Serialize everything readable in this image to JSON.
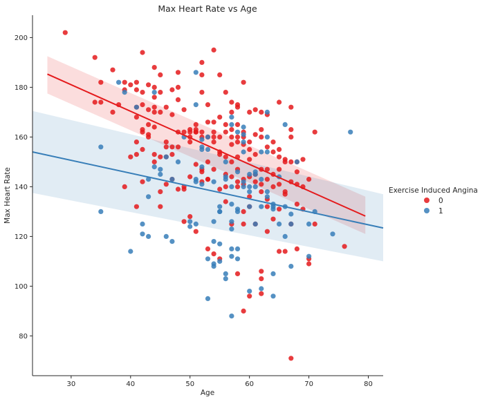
{
  "chart_data": {
    "type": "scatter",
    "title": "Max Heart Rate vs Age",
    "xlabel": "Age",
    "ylabel": "Max Heart Rate",
    "xlim": [
      23.5,
      82.5
    ],
    "ylim": [
      64,
      209
    ],
    "x_ticks": [
      30,
      40,
      50,
      60,
      70,
      80
    ],
    "y_ticks": [
      80,
      100,
      120,
      140,
      160,
      180,
      200
    ],
    "grid": false,
    "legend_title": "Exercise Induced Angina",
    "legend_position": "right",
    "series": [
      {
        "name": "0",
        "color": "#e41a1c",
        "points": [
          [
            29,
            202
          ],
          [
            34,
            192
          ],
          [
            35,
            182
          ],
          [
            37,
            187
          ],
          [
            42,
            194
          ],
          [
            44,
            188
          ],
          [
            45,
            185
          ],
          [
            48,
            186
          ],
          [
            52,
            190
          ],
          [
            54,
            195
          ],
          [
            35,
            174
          ],
          [
            34,
            174
          ],
          [
            38,
            173
          ],
          [
            39,
            182
          ],
          [
            40,
            181
          ],
          [
            41,
            182
          ],
          [
            41,
            179
          ],
          [
            42,
            178
          ],
          [
            43,
            181
          ],
          [
            44,
            180
          ],
          [
            44,
            176
          ],
          [
            45,
            178
          ],
          [
            47,
            179
          ],
          [
            48,
            180
          ],
          [
            49,
            171
          ],
          [
            50,
            163
          ],
          [
            51,
            162
          ],
          [
            52,
            178
          ],
          [
            52,
            185
          ],
          [
            55,
            185
          ],
          [
            56,
            178
          ],
          [
            57,
            174
          ],
          [
            58,
            172
          ],
          [
            58,
            173
          ],
          [
            59,
            182
          ],
          [
            60,
            170
          ],
          [
            61,
            171
          ],
          [
            62,
            170
          ],
          [
            63,
            169
          ],
          [
            65,
            174
          ],
          [
            67,
            172
          ],
          [
            37,
            170
          ],
          [
            39,
            179
          ],
          [
            41,
            172
          ],
          [
            41,
            168
          ],
          [
            42,
            163
          ],
          [
            42,
            173
          ],
          [
            43,
            171
          ],
          [
            43,
            165
          ],
          [
            44,
            170
          ],
          [
            44,
            172
          ],
          [
            45,
            170
          ],
          [
            46,
            172
          ],
          [
            47,
            169
          ],
          [
            48,
            175
          ],
          [
            50,
            160
          ],
          [
            50,
            158
          ],
          [
            51,
            162
          ],
          [
            52,
            160
          ],
          [
            52,
            162
          ],
          [
            53,
            166
          ],
          [
            53,
            173
          ],
          [
            54,
            162
          ],
          [
            54,
            166
          ],
          [
            55,
            168
          ],
          [
            56,
            165
          ],
          [
            56,
            162
          ],
          [
            57,
            170
          ],
          [
            57,
            163
          ],
          [
            58,
            165
          ],
          [
            58,
            160
          ],
          [
            59,
            160
          ],
          [
            59,
            162
          ],
          [
            60,
            158
          ],
          [
            60,
            155
          ],
          [
            61,
            161
          ],
          [
            62,
            163
          ],
          [
            62,
            160
          ],
          [
            63,
            156
          ],
          [
            64,
            158
          ],
          [
            64,
            154
          ],
          [
            65,
            155
          ],
          [
            65,
            152
          ],
          [
            66,
            150
          ],
          [
            67,
            163
          ],
          [
            67,
            160
          ],
          [
            68,
            150
          ],
          [
            68,
            146
          ],
          [
            69,
            151
          ],
          [
            71,
            162
          ],
          [
            41,
            158
          ],
          [
            41,
            153
          ],
          [
            42,
            162
          ],
          [
            42,
            155
          ],
          [
            43,
            161
          ],
          [
            43,
            160
          ],
          [
            44,
            153
          ],
          [
            44,
            150
          ],
          [
            45,
            152
          ],
          [
            46,
            152
          ],
          [
            46,
            156
          ],
          [
            47,
            153
          ],
          [
            47,
            156
          ],
          [
            48,
            156
          ],
          [
            49,
            140
          ],
          [
            49,
            162
          ],
          [
            50,
            162
          ],
          [
            51,
            149
          ],
          [
            51,
            163
          ],
          [
            52,
            146
          ],
          [
            52,
            147
          ],
          [
            53,
            143
          ],
          [
            53,
            150
          ],
          [
            53,
            160
          ],
          [
            54,
            147
          ],
          [
            54,
            160
          ],
          [
            55,
            160
          ],
          [
            55,
            154
          ],
          [
            56,
            152
          ],
          [
            56,
            145
          ],
          [
            56,
            140
          ],
          [
            57,
            160
          ],
          [
            57,
            157
          ],
          [
            58,
            152
          ],
          [
            58,
            147
          ],
          [
            58,
            140
          ],
          [
            59,
            143
          ],
          [
            59,
            141
          ],
          [
            60,
            144
          ],
          [
            60,
            151
          ],
          [
            61,
            145
          ],
          [
            62,
            147
          ],
          [
            62,
            141
          ],
          [
            63,
            143
          ],
          [
            63,
            147
          ],
          [
            64,
            145
          ],
          [
            65,
            141
          ],
          [
            65,
            147
          ],
          [
            66,
            151
          ],
          [
            67,
            142
          ],
          [
            67,
            150
          ],
          [
            68,
            141
          ],
          [
            69,
            140
          ],
          [
            70,
            143
          ],
          [
            40,
            152
          ],
          [
            39,
            140
          ],
          [
            41,
            132
          ],
          [
            42,
            142
          ],
          [
            45,
            138
          ],
          [
            45,
            132
          ],
          [
            47,
            143
          ],
          [
            48,
            139
          ],
          [
            49,
            139
          ],
          [
            52,
            142
          ],
          [
            53,
            143
          ],
          [
            55,
            139
          ],
          [
            57,
            144
          ],
          [
            58,
            142
          ],
          [
            59,
            130
          ],
          [
            60,
            132
          ],
          [
            62,
            138
          ],
          [
            63,
            132
          ],
          [
            64,
            127
          ],
          [
            65,
            131
          ],
          [
            66,
            138
          ],
          [
            67,
            125
          ],
          [
            68,
            133
          ],
          [
            69,
            131
          ],
          [
            71,
            125
          ],
          [
            49,
            126
          ],
          [
            50,
            128
          ],
          [
            51,
            122
          ],
          [
            53,
            115
          ],
          [
            54,
            113
          ],
          [
            55,
            111
          ],
          [
            57,
            125
          ],
          [
            59,
            125
          ],
          [
            61,
            125
          ],
          [
            62,
            106
          ],
          [
            62,
            103
          ],
          [
            63,
            122
          ],
          [
            65,
            114
          ],
          [
            66,
            114
          ],
          [
            68,
            115
          ],
          [
            70,
            111
          ],
          [
            70,
            109
          ],
          [
            76,
            116
          ],
          [
            58,
            105
          ],
          [
            59,
            90
          ],
          [
            60,
            96
          ],
          [
            62,
            97
          ],
          [
            67,
            71
          ],
          [
            46,
            141
          ],
          [
            56,
            134
          ],
          [
            60,
            136
          ],
          [
            64,
            140
          ],
          [
            61,
            142
          ],
          [
            63,
            135
          ],
          [
            66,
            137
          ],
          [
            50,
            144
          ],
          [
            55,
            153
          ],
          [
            57,
            150
          ],
          [
            44,
            164
          ],
          [
            46,
            158
          ],
          [
            48,
            162
          ],
          [
            51,
            165
          ],
          [
            54,
            158
          ],
          [
            58,
            158
          ],
          [
            59,
            157
          ],
          [
            61,
            153
          ]
        ]
      },
      {
        "name": "1",
        "color": "#377eb8",
        "points": [
          [
            35,
            156
          ],
          [
            35,
            130
          ],
          [
            38,
            182
          ],
          [
            39,
            178
          ],
          [
            40,
            114
          ],
          [
            41,
            172
          ],
          [
            42,
            125
          ],
          [
            42,
            121
          ],
          [
            43,
            120
          ],
          [
            43,
            136
          ],
          [
            43,
            143
          ],
          [
            44,
            178
          ],
          [
            44,
            148
          ],
          [
            45,
            147
          ],
          [
            45,
            145
          ],
          [
            46,
            152
          ],
          [
            46,
            120
          ],
          [
            47,
            118
          ],
          [
            47,
            143
          ],
          [
            48,
            150
          ],
          [
            50,
            126
          ],
          [
            50,
            124
          ],
          [
            51,
            186
          ],
          [
            51,
            173
          ],
          [
            51,
            143
          ],
          [
            51,
            142
          ],
          [
            51,
            125
          ],
          [
            52,
            159
          ],
          [
            52,
            156
          ],
          [
            52,
            155
          ],
          [
            52,
            148
          ],
          [
            52,
            141
          ],
          [
            53,
            160
          ],
          [
            53,
            155
          ],
          [
            53,
            111
          ],
          [
            53,
            95
          ],
          [
            54,
            142
          ],
          [
            54,
            126
          ],
          [
            54,
            118
          ],
          [
            54,
            109
          ],
          [
            54,
            108
          ],
          [
            55,
            132
          ],
          [
            55,
            130
          ],
          [
            55,
            117
          ],
          [
            55,
            110
          ],
          [
            56,
            150
          ],
          [
            56,
            144
          ],
          [
            56,
            143
          ],
          [
            56,
            105
          ],
          [
            56,
            103
          ],
          [
            57,
            168
          ],
          [
            57,
            165
          ],
          [
            57,
            140
          ],
          [
            57,
            133
          ],
          [
            57,
            126
          ],
          [
            57,
            123
          ],
          [
            57,
            112
          ],
          [
            57,
            115
          ],
          [
            57,
            88
          ],
          [
            58,
            162
          ],
          [
            58,
            146
          ],
          [
            58,
            131
          ],
          [
            58,
            130
          ],
          [
            58,
            111
          ],
          [
            59,
            164
          ],
          [
            59,
            161
          ],
          [
            59,
            158
          ],
          [
            59,
            154
          ],
          [
            59,
            142
          ],
          [
            59,
            140
          ],
          [
            60,
            140
          ],
          [
            60,
            138
          ],
          [
            60,
            132
          ],
          [
            60,
            98
          ],
          [
            61,
            146
          ],
          [
            61,
            145
          ],
          [
            61,
            140
          ],
          [
            61,
            125
          ],
          [
            62,
            154
          ],
          [
            62,
            143
          ],
          [
            62,
            132
          ],
          [
            62,
            99
          ],
          [
            63,
            170
          ],
          [
            63,
            160
          ],
          [
            63,
            154
          ],
          [
            63,
            138
          ],
          [
            63,
            136
          ],
          [
            64,
            133
          ],
          [
            64,
            132
          ],
          [
            64,
            131
          ],
          [
            64,
            105
          ],
          [
            64,
            96
          ],
          [
            65,
            144
          ],
          [
            65,
            125
          ],
          [
            66,
            165
          ],
          [
            66,
            132
          ],
          [
            66,
            120
          ],
          [
            67,
            129
          ],
          [
            67,
            125
          ],
          [
            67,
            108
          ],
          [
            68,
            150
          ],
          [
            70,
            125
          ],
          [
            70,
            112
          ],
          [
            71,
            130
          ],
          [
            74,
            121
          ],
          [
            77,
            162
          ],
          [
            49,
            160
          ],
          [
            55,
            130
          ],
          [
            58,
            115
          ],
          [
            60,
            145
          ]
        ]
      }
    ],
    "regression": [
      {
        "series": "0",
        "x": [
          26,
          79.5
        ],
        "y": [
          185.3,
          128.2
        ],
        "ci_start": [
          177.5,
          192.5
        ],
        "ci_end": [
          121,
          136
        ]
      },
      {
        "series": "1",
        "x": [
          23.5,
          82.5
        ],
        "y": [
          154,
          123.4
        ],
        "ci_start": [
          137.5,
          170.5
        ],
        "ci_end": [
          110,
          137
        ]
      }
    ]
  }
}
